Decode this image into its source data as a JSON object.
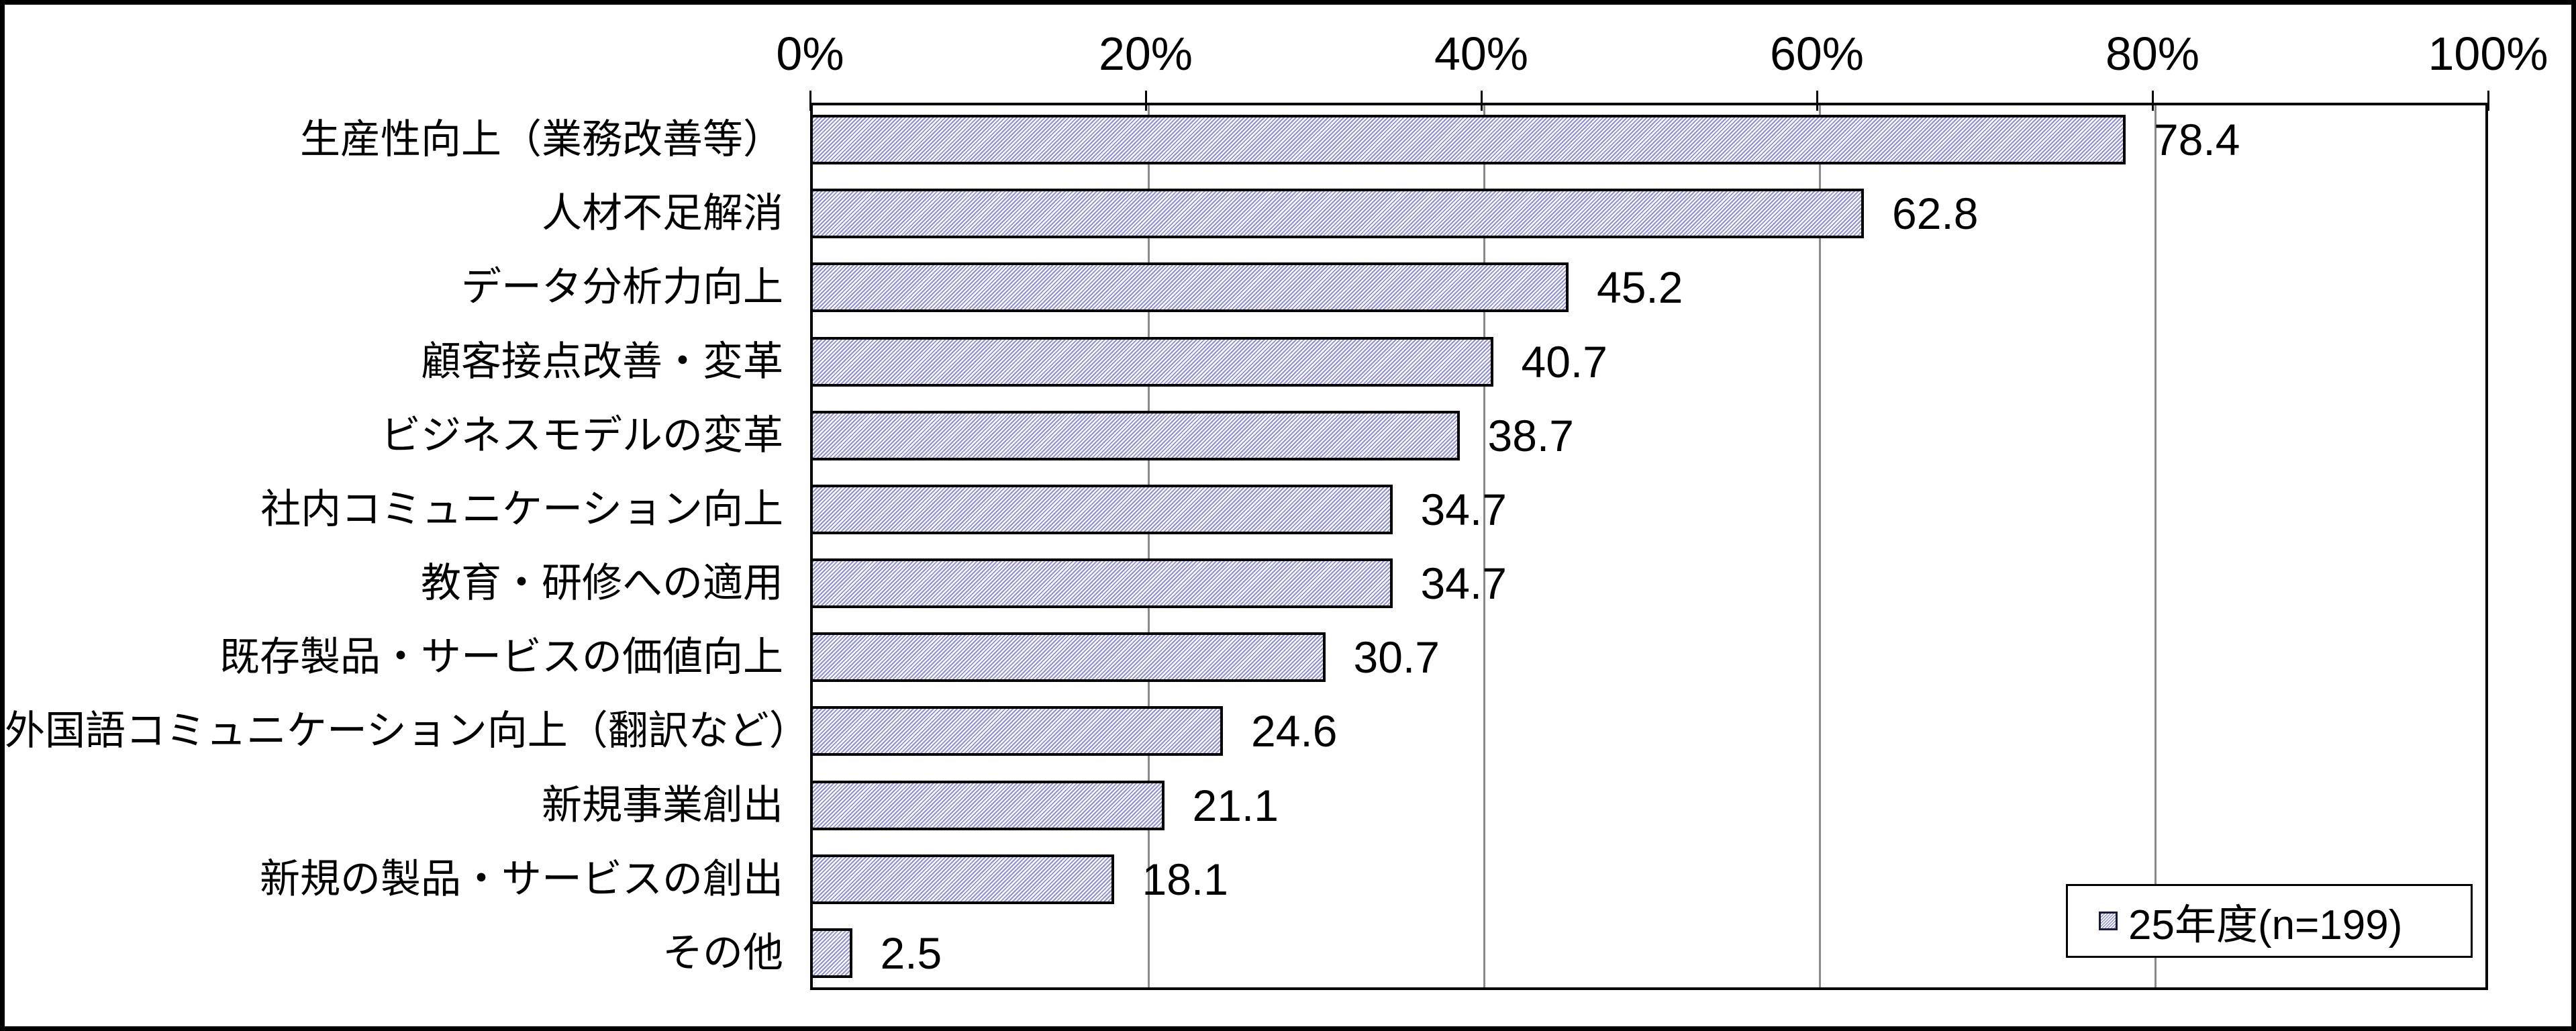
{
  "chart_data": {
    "type": "bar",
    "orientation": "horizontal",
    "title": "",
    "categories": [
      "生産性向上（業務改善等）",
      "人材不足解消",
      "データ分析力向上",
      "顧客接点改善・変革",
      "ビジネスモデルの変革",
      "社内コミュニケーション向上",
      "教育・研修への適用",
      "既存製品・サービスの価値向上",
      "外国語コミュニケーション向上（翻訳など）",
      "新規事業創出",
      "新規の製品・サービスの創出",
      "その他"
    ],
    "values": [
      78.4,
      62.8,
      45.2,
      40.7,
      38.7,
      34.7,
      34.7,
      30.7,
      24.6,
      21.1,
      18.1,
      2.5
    ],
    "value_labels": [
      "78.4",
      "62.8",
      "45.2",
      "40.7",
      "38.7",
      "34.7",
      "34.7",
      "30.7",
      "24.6",
      "21.1",
      "18.1",
      "2.5"
    ],
    "xlabel": "",
    "ylabel": "",
    "xlim": [
      0,
      100
    ],
    "x_ticks": [
      "0%",
      "20%",
      "40%",
      "60%",
      "80%",
      "100%"
    ],
    "x_tick_values": [
      0,
      20,
      40,
      60,
      80,
      100
    ],
    "grid": true,
    "legend": {
      "label": "25年度(n=199)",
      "position": "bottom-right"
    },
    "colors": {
      "bar_hatch": "#8e8edb",
      "bar_border": "#000000",
      "gridline": "#8a8a8a",
      "axis": "#000000",
      "background": "#ffffff"
    }
  }
}
